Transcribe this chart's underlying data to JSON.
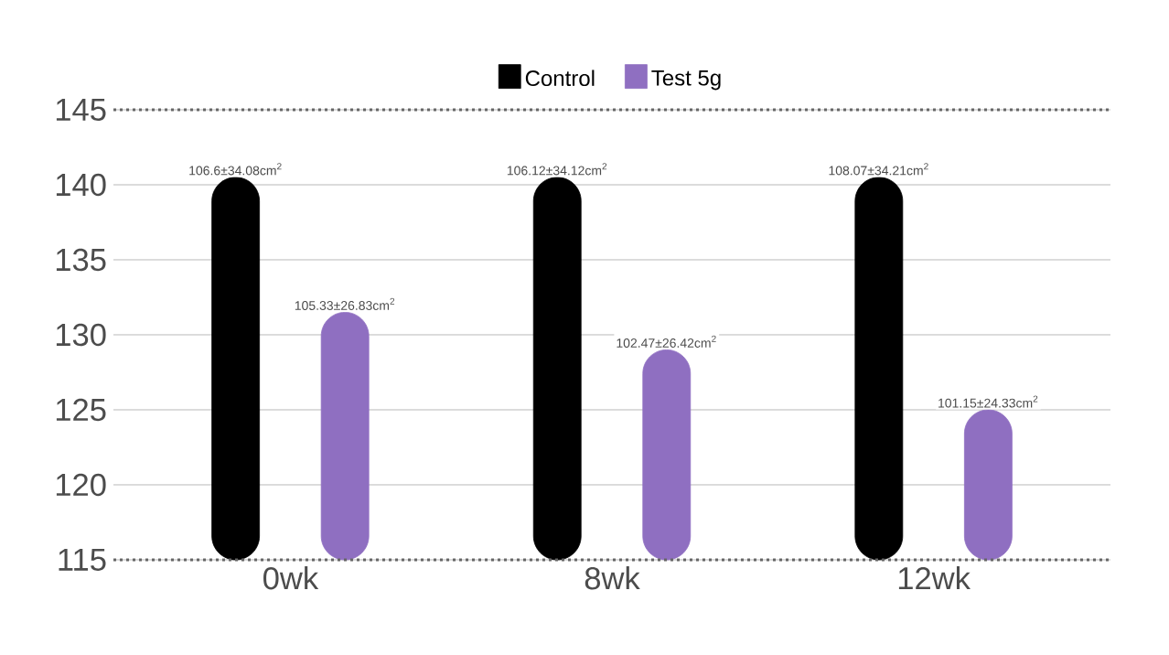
{
  "chart_data": {
    "type": "bar",
    "categories": [
      "0wk",
      "8wk",
      "12wk"
    ],
    "series": [
      {
        "name": "Control",
        "color": "#000000",
        "values": [
          140.5,
          140.5,
          140.5
        ]
      },
      {
        "name": "Test 5g",
        "color": "#8f6fc1",
        "values": [
          131.5,
          129,
          125
        ]
      }
    ],
    "annotations": [
      "106.6±34.08cm$^{2}$",
      "106.12±34.12cm$^{2}$",
      "108.07±34.21cm$^{2}$",
      "105.33±26.83cm$^{2}$",
      "102.47±26.42cm$^{2}$",
      "101.15±24.33cm$^{2}$"
    ],
    "ylim": [
      115,
      145
    ],
    "yticks": [
      115,
      120,
      125,
      130,
      135,
      140,
      145
    ],
    "grid": "y",
    "legend": "top"
  }
}
